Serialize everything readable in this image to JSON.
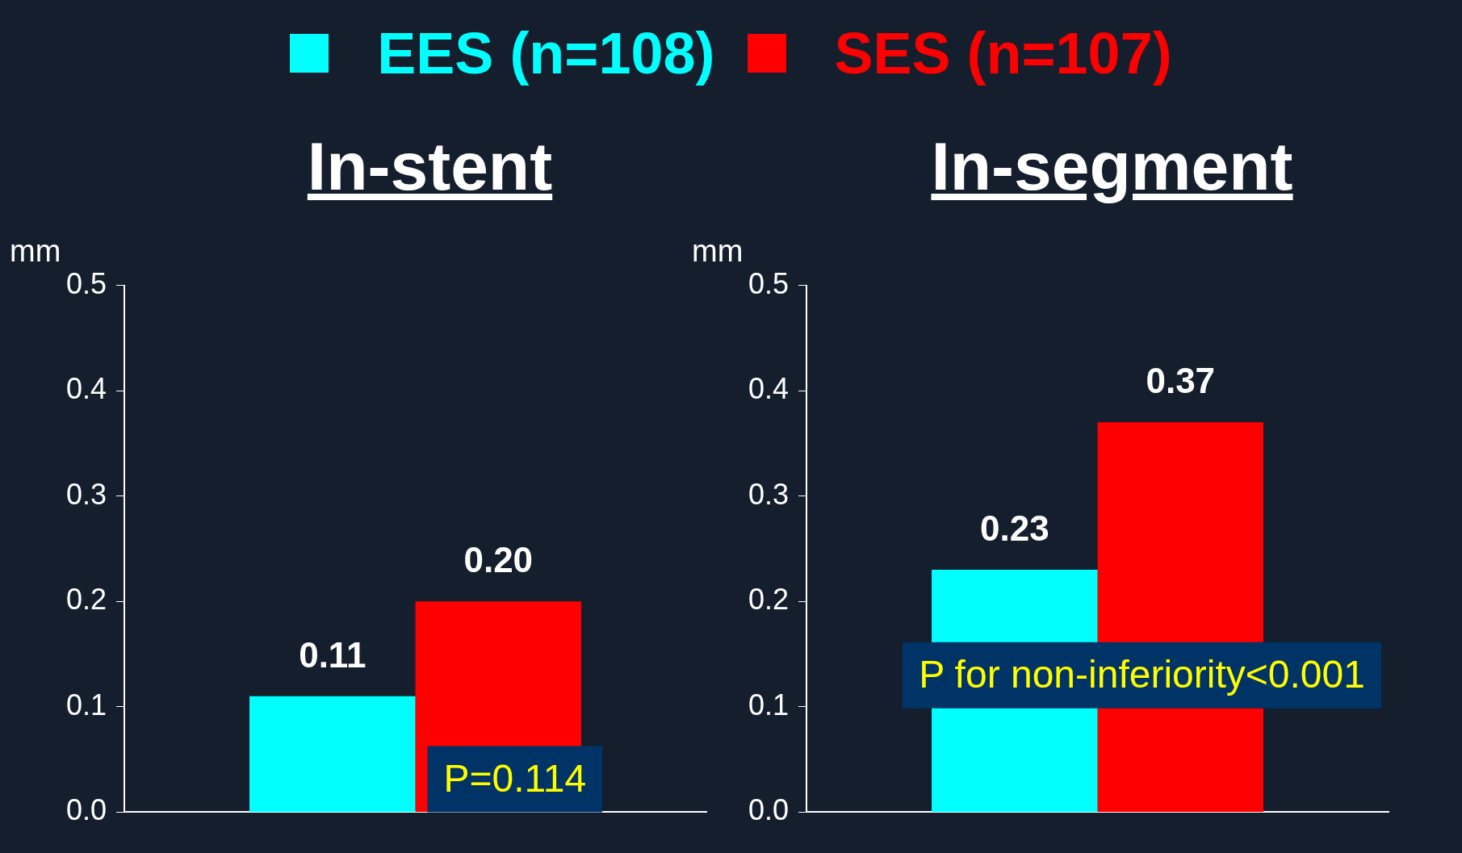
{
  "chart_data": [
    {
      "type": "bar",
      "title": "In-stent",
      "ylabel": "mm",
      "categories": [
        null
      ],
      "series": [
        {
          "name": "EES (n=108)",
          "color": "#00ffff",
          "values": [
            0.11
          ],
          "value_labels": [
            "0.11"
          ]
        },
        {
          "name": "SES (n=107)",
          "color": "#ff0000",
          "values": [
            0.2
          ],
          "value_labels": [
            "0.20"
          ]
        }
      ],
      "ylim": [
        0,
        0.5
      ],
      "yticks": [
        {
          "value": 0,
          "label": "0.0"
        },
        {
          "value": 0.1,
          "label": "0.1"
        },
        {
          "value": 0.2,
          "label": "0.2"
        },
        {
          "value": 0.3,
          "label": "0.3"
        },
        {
          "value": 0.4,
          "label": "0.4"
        },
        {
          "value": 0.5,
          "label": "0.5"
        }
      ],
      "grid": false,
      "legend": "top",
      "annotations": [
        "P=0.114"
      ]
    },
    {
      "type": "bar",
      "title": "In-segment",
      "ylabel": "mm",
      "categories": [
        null
      ],
      "series": [
        {
          "color": "#00ffff",
          "values": [
            0.23
          ],
          "value_labels": [
            "0.23"
          ]
        },
        {
          "color": "#ff0000",
          "values": [
            0.37
          ],
          "value_labels": [
            "0.37"
          ]
        }
      ],
      "ylim": [
        0,
        0.5
      ],
      "yticks": [
        {
          "value": 0,
          "label": "0.0"
        },
        {
          "value": 0.1,
          "label": "0.1"
        },
        {
          "value": 0.2,
          "label": "0.2"
        },
        {
          "value": 0.3,
          "label": "0.3"
        },
        {
          "value": 0.4,
          "label": "0.4"
        },
        {
          "value": 0.5,
          "label": "0.5"
        }
      ],
      "grid": false,
      "annotations": [
        "P for non-inferiority<0.001"
      ]
    }
  ]
}
